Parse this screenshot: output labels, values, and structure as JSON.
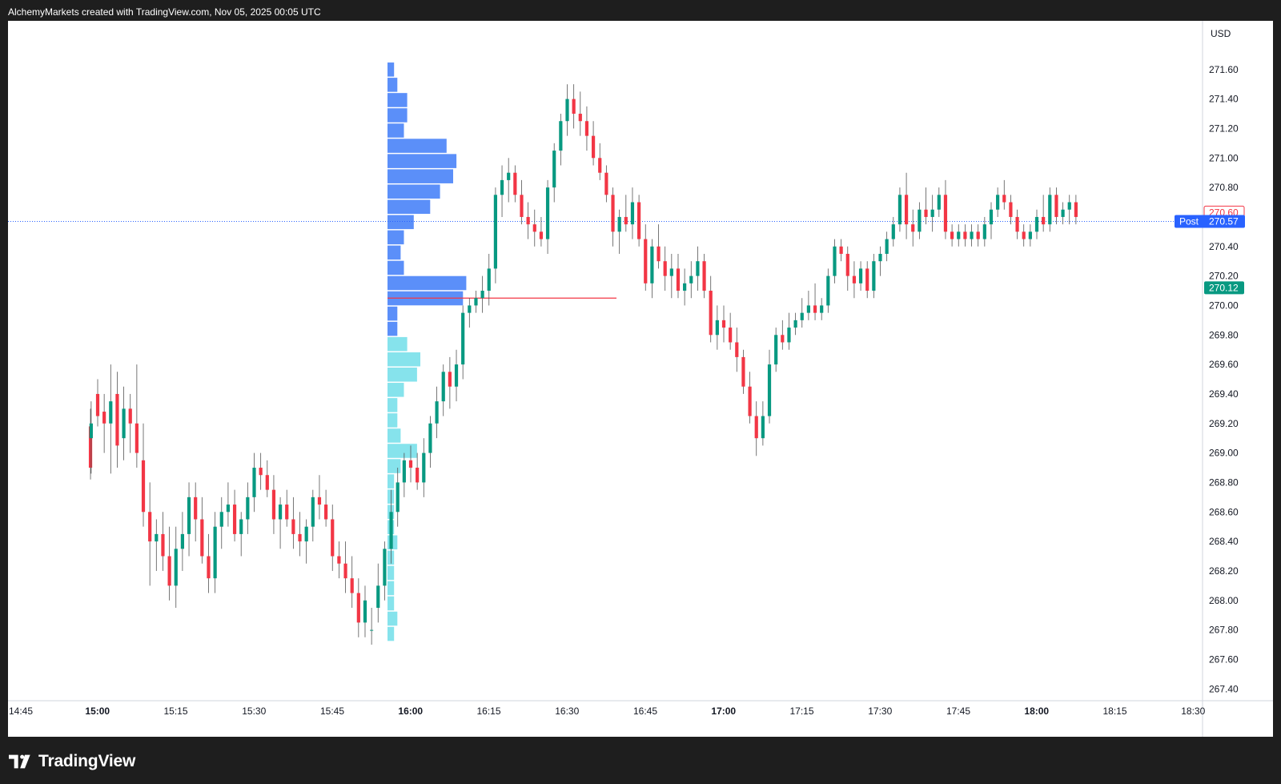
{
  "header": {
    "text": "AlchemyMarkets created with TradingView.com, Nov 05, 2025 00:05 UTC"
  },
  "footer": {
    "brand": "TradingView",
    "logo_icon": "tradingview-logo-icon"
  },
  "colors": {
    "up": "#089981",
    "down": "#f23645",
    "profile_upper": "#5b8ff9",
    "profile_lower": "#86e3ec",
    "poc": "#f23645",
    "post_badge": "#2962ff",
    "price_up_badge": "#089981",
    "high_badge_text": "#f23645"
  },
  "chart_data": {
    "type": "candlestick",
    "currency": "USD",
    "y_ticks": [
      "271.60",
      "271.40",
      "271.20",
      "271.00",
      "270.80",
      "270.60",
      "270.40",
      "270.20",
      "270.00",
      "269.80",
      "269.60",
      "269.40",
      "269.20",
      "269.00",
      "268.80",
      "268.60",
      "268.40",
      "268.20",
      "268.00",
      "267.80",
      "267.60",
      "267.40"
    ],
    "ylim": [
      267.32,
      271.93
    ],
    "x_ticks": [
      {
        "label": "14:45",
        "bold": false
      },
      {
        "label": "15:00",
        "bold": true
      },
      {
        "label": "15:15",
        "bold": false
      },
      {
        "label": "15:30",
        "bold": false
      },
      {
        "label": "15:45",
        "bold": false
      },
      {
        "label": "16:00",
        "bold": true
      },
      {
        "label": "16:15",
        "bold": false
      },
      {
        "label": "16:30",
        "bold": false
      },
      {
        "label": "16:45",
        "bold": false
      },
      {
        "label": "17:00",
        "bold": true
      },
      {
        "label": "17:15",
        "bold": false
      },
      {
        "label": "17:30",
        "bold": false
      },
      {
        "label": "17:45",
        "bold": false
      },
      {
        "label": "18:00",
        "bold": true
      },
      {
        "label": "18:15",
        "bold": false
      },
      {
        "label": "18:30",
        "bold": false
      }
    ],
    "candles": [
      [
        14.45,
        269.18,
        269.3,
        268.82,
        268.9
      ],
      [
        14.5,
        269.1,
        269.35,
        268.86,
        269.2
      ],
      [
        15.0,
        269.4,
        269.5,
        269.18,
        269.25
      ],
      [
        15.5,
        269.28,
        269.4,
        269.0,
        269.2
      ],
      [
        16.0,
        269.2,
        269.6,
        268.86,
        269.35
      ],
      [
        16.5,
        269.4,
        269.55,
        268.9,
        269.05
      ],
      [
        17.0,
        269.1,
        269.45,
        268.95,
        269.3
      ],
      [
        17.5,
        269.3,
        269.4,
        269.0,
        269.2
      ],
      [
        18.0,
        269.2,
        269.6,
        268.9,
        269.0
      ],
      [
        18.5,
        268.95,
        269.2,
        268.5,
        268.6
      ],
      [
        19.0,
        268.6,
        268.8,
        268.1,
        268.4
      ],
      [
        19.5,
        268.4,
        268.55,
        268.2,
        268.45
      ],
      [
        20.0,
        268.45,
        268.6,
        268.2,
        268.3
      ],
      [
        20.5,
        268.3,
        268.5,
        268.0,
        268.1
      ],
      [
        21.0,
        268.1,
        268.5,
        267.95,
        268.35
      ],
      [
        21.5,
        268.35,
        268.6,
        268.2,
        268.45
      ],
      [
        22.0,
        268.45,
        268.8,
        268.3,
        268.7
      ],
      [
        22.5,
        268.7,
        268.8,
        268.4,
        268.55
      ],
      [
        23.0,
        268.55,
        268.7,
        268.25,
        268.3
      ],
      [
        23.5,
        268.3,
        268.45,
        268.05,
        268.15
      ],
      [
        24.0,
        268.15,
        268.6,
        268.05,
        268.5
      ],
      [
        24.5,
        268.5,
        268.7,
        268.35,
        268.6
      ],
      [
        25.0,
        268.6,
        268.8,
        268.5,
        268.65
      ],
      [
        25.5,
        268.65,
        268.75,
        268.4,
        268.45
      ],
      [
        26.0,
        268.45,
        268.6,
        268.3,
        268.55
      ],
      [
        26.5,
        268.55,
        268.8,
        268.45,
        268.7
      ],
      [
        27.0,
        268.7,
        269.0,
        268.6,
        268.9
      ],
      [
        27.5,
        268.9,
        269.0,
        268.75,
        268.85
      ],
      [
        28.0,
        268.85,
        268.95,
        268.7,
        268.75
      ],
      [
        28.5,
        268.75,
        268.85,
        268.45,
        268.55
      ],
      [
        29.0,
        268.55,
        268.7,
        268.35,
        268.65
      ],
      [
        29.5,
        268.65,
        268.75,
        268.5,
        268.55
      ],
      [
        30.0,
        268.55,
        268.7,
        268.35,
        268.45
      ],
      [
        30.5,
        268.45,
        268.6,
        268.3,
        268.4
      ],
      [
        31.0,
        268.4,
        268.55,
        268.25,
        268.5
      ],
      [
        31.5,
        268.5,
        268.75,
        268.4,
        268.7
      ],
      [
        32.0,
        268.7,
        268.85,
        268.55,
        268.65
      ],
      [
        32.5,
        268.65,
        268.75,
        268.5,
        268.55
      ],
      [
        33.0,
        268.55,
        268.65,
        268.2,
        268.3
      ],
      [
        33.5,
        268.3,
        268.4,
        268.15,
        268.25
      ],
      [
        34.0,
        268.25,
        268.4,
        268.05,
        268.15
      ],
      [
        34.5,
        268.15,
        268.3,
        267.95,
        268.05
      ],
      [
        35.0,
        268.05,
        268.15,
        267.75,
        267.85
      ],
      [
        35.5,
        267.85,
        268.1,
        267.75,
        268.0
      ]
    ],
    "candles_b": [
      [
        36.0,
        267.8,
        267.95,
        267.7,
        267.8
      ],
      [
        36.5,
        267.95,
        268.25,
        267.85,
        268.1
      ],
      [
        37.0,
        268.1,
        268.4,
        268.0,
        268.35
      ],
      [
        37.5,
        268.35,
        268.75,
        268.25,
        268.6
      ],
      [
        38.0,
        268.6,
        268.9,
        268.5,
        268.8
      ],
      [
        38.5,
        268.8,
        269.0,
        268.7,
        268.95
      ],
      [
        39.0,
        268.95,
        269.05,
        268.8,
        268.9
      ],
      [
        39.5,
        268.9,
        269.0,
        268.75,
        268.8
      ],
      [
        40.0,
        268.8,
        269.1,
        268.7,
        269.0
      ],
      [
        40.5,
        269.0,
        269.25,
        268.9,
        269.2
      ],
      [
        41.0,
        269.2,
        269.45,
        269.1,
        269.35
      ],
      [
        41.5,
        269.35,
        269.6,
        269.25,
        269.55
      ],
      [
        42.0,
        269.55,
        269.65,
        269.3,
        269.45
      ],
      [
        42.5,
        269.45,
        269.7,
        269.35,
        269.6
      ],
      [
        43.0,
        269.6,
        270.0,
        269.5,
        269.95
      ],
      [
        43.5,
        269.95,
        270.05,
        269.85,
        270.0
      ],
      [
        44.0,
        270.0,
        270.1,
        269.95,
        270.05
      ],
      [
        44.5,
        270.05,
        270.2,
        269.95,
        270.1
      ],
      [
        45.0,
        270.1,
        270.35,
        270.0,
        270.25
      ],
      [
        45.5,
        270.25,
        270.8,
        270.15,
        270.75
      ],
      [
        46.0,
        270.75,
        270.95,
        270.6,
        270.85
      ],
      [
        46.5,
        270.85,
        271.0,
        270.7,
        270.9
      ],
      [
        47.0,
        270.9,
        270.95,
        270.7,
        270.75
      ],
      [
        47.5,
        270.75,
        270.85,
        270.55,
        270.6
      ],
      [
        48.0,
        270.6,
        270.7,
        270.45,
        270.55
      ],
      [
        48.5,
        270.55,
        270.65,
        270.4,
        270.5
      ],
      [
        49.0,
        270.5,
        270.6,
        270.4,
        270.45
      ],
      [
        49.5,
        270.45,
        270.85,
        270.35,
        270.8
      ],
      [
        50.0,
        270.8,
        271.1,
        270.7,
        271.05
      ],
      [
        50.5,
        271.05,
        271.3,
        270.95,
        271.25
      ],
      [
        51.0,
        271.25,
        271.5,
        271.15,
        271.4
      ],
      [
        51.5,
        271.4,
        271.5,
        271.2,
        271.3
      ],
      [
        52.0,
        271.3,
        271.45,
        271.15,
        271.25
      ],
      [
        52.5,
        271.25,
        271.35,
        271.05,
        271.15
      ],
      [
        53.0,
        271.15,
        271.25,
        270.95,
        271.0
      ],
      [
        53.5,
        271.0,
        271.1,
        270.85,
        270.9
      ],
      [
        54.0,
        270.9,
        270.95,
        270.7,
        270.75
      ],
      [
        54.5,
        270.75,
        270.8,
        270.4,
        270.5
      ],
      [
        55.0,
        270.5,
        270.65,
        270.35,
        270.6
      ],
      [
        55.5,
        270.6,
        270.75,
        270.5,
        270.55
      ],
      [
        56.0,
        270.55,
        270.8,
        270.45,
        270.7
      ],
      [
        56.5,
        270.7,
        270.75,
        270.4,
        270.45
      ],
      [
        57.0,
        270.45,
        270.55,
        270.1,
        270.15
      ],
      [
        57.5,
        270.15,
        270.45,
        270.05,
        270.4
      ]
    ],
    "candles_c": [
      [
        58.0,
        270.4,
        270.55,
        270.25,
        270.3
      ],
      [
        58.5,
        270.3,
        270.4,
        270.1,
        270.2
      ],
      [
        59.0,
        270.2,
        270.35,
        270.05,
        270.25
      ],
      [
        59.5,
        270.25,
        270.35,
        270.05,
        270.1
      ],
      [
        60.0,
        270.1,
        270.25,
        270.0,
        270.15
      ],
      [
        60.5,
        270.15,
        270.3,
        270.05,
        270.2
      ],
      [
        61.0,
        270.2,
        270.4,
        270.1,
        270.3
      ],
      [
        61.5,
        270.3,
        270.35,
        270.05,
        270.1
      ],
      [
        62.0,
        270.1,
        270.2,
        269.75,
        269.8
      ],
      [
        62.5,
        269.8,
        270.0,
        269.7,
        269.9
      ],
      [
        63.0,
        269.9,
        270.0,
        269.75,
        269.85
      ],
      [
        63.5,
        269.85,
        269.95,
        269.7,
        269.75
      ],
      [
        64.0,
        269.75,
        269.85,
        269.55,
        269.65
      ],
      [
        64.5,
        269.65,
        269.7,
        269.4,
        269.45
      ],
      [
        65.0,
        269.45,
        269.55,
        269.2,
        269.25
      ],
      [
        65.5,
        269.25,
        269.35,
        268.98,
        269.1
      ],
      [
        66.0,
        269.1,
        269.35,
        269.05,
        269.25
      ],
      [
        66.5,
        269.25,
        269.7,
        269.2,
        269.6
      ],
      [
        67.0,
        269.6,
        269.85,
        269.55,
        269.8
      ],
      [
        67.5,
        269.8,
        269.9,
        269.7,
        269.75
      ],
      [
        68.0,
        269.75,
        269.95,
        269.7,
        269.85
      ],
      [
        68.5,
        269.85,
        269.95,
        269.8,
        269.9
      ],
      [
        69.0,
        269.9,
        270.05,
        269.85,
        269.95
      ],
      [
        69.5,
        269.95,
        270.1,
        269.9,
        270.0
      ],
      [
        70.0,
        270.0,
        270.15,
        269.9,
        269.95
      ],
      [
        70.5,
        269.95,
        270.05,
        269.9,
        270.0
      ],
      [
        71.0,
        270.0,
        270.25,
        269.95,
        270.2
      ],
      [
        71.5,
        270.2,
        270.45,
        270.15,
        270.4
      ],
      [
        72.0,
        270.4,
        270.45,
        270.3,
        270.35
      ],
      [
        72.5,
        270.35,
        270.4,
        270.1,
        270.2
      ],
      [
        73.0,
        270.2,
        270.3,
        270.05,
        270.15
      ],
      [
        73.5,
        270.15,
        270.3,
        270.1,
        270.25
      ],
      [
        74.0,
        270.25,
        270.3,
        270.05,
        270.1
      ],
      [
        74.5,
        270.1,
        270.35,
        270.05,
        270.3
      ],
      [
        75.0,
        270.3,
        270.4,
        270.2,
        270.35
      ],
      [
        75.5,
        270.35,
        270.5,
        270.3,
        270.45
      ],
      [
        76.0,
        270.45,
        270.6,
        270.4,
        270.55
      ],
      [
        76.5,
        270.55,
        270.8,
        270.5,
        270.75
      ],
      [
        77.0,
        270.75,
        270.9,
        270.45,
        270.55
      ],
      [
        77.5,
        270.55,
        270.65,
        270.4,
        270.5
      ],
      [
        78.0,
        270.5,
        270.7,
        270.45,
        270.65
      ],
      [
        78.5,
        270.65,
        270.8,
        270.55,
        270.6
      ],
      [
        79.0,
        270.6,
        270.75,
        270.5,
        270.65
      ],
      [
        79.5,
        270.65,
        270.8,
        270.6,
        270.75
      ]
    ],
    "candles_d": [
      [
        80.0,
        270.75,
        270.85,
        270.45,
        270.5
      ],
      [
        80.5,
        270.5,
        270.55,
        270.4,
        270.45
      ],
      [
        81.0,
        270.45,
        270.55,
        270.4,
        270.5
      ],
      [
        81.5,
        270.5,
        270.55,
        270.4,
        270.45
      ],
      [
        82.0,
        270.45,
        270.55,
        270.4,
        270.5
      ],
      [
        82.5,
        270.5,
        270.55,
        270.4,
        270.45
      ],
      [
        83.0,
        270.45,
        270.6,
        270.4,
        270.55
      ],
      [
        83.5,
        270.55,
        270.7,
        270.45,
        270.65
      ],
      [
        84.0,
        270.65,
        270.8,
        270.6,
        270.75
      ],
      [
        84.5,
        270.75,
        270.85,
        270.65,
        270.7
      ],
      [
        85.0,
        270.7,
        270.75,
        270.55,
        270.6
      ],
      [
        85.5,
        270.6,
        270.65,
        270.45,
        270.5
      ],
      [
        86.0,
        270.5,
        270.55,
        270.4,
        270.45
      ],
      [
        86.5,
        270.45,
        270.55,
        270.4,
        270.5
      ],
      [
        87.0,
        270.5,
        270.65,
        270.45,
        270.6
      ],
      [
        87.5,
        270.6,
        270.75,
        270.5,
        270.55
      ],
      [
        88.0,
        270.55,
        270.8,
        270.5,
        270.75
      ],
      [
        88.5,
        270.75,
        270.8,
        270.55,
        270.6
      ],
      [
        89.0,
        270.6,
        270.7,
        270.55,
        270.65
      ],
      [
        89.5,
        270.65,
        270.75,
        270.55,
        270.7
      ],
      [
        90.0,
        270.7,
        270.75,
        270.55,
        270.6
      ]
    ],
    "volume_profile": {
      "upper_rows": [
        2,
        3,
        6,
        6,
        5,
        18,
        21,
        20,
        16,
        13,
        8,
        5,
        4,
        5,
        24,
        23,
        3,
        3
      ],
      "lower_rows": [
        6,
        10,
        9,
        5,
        3,
        3,
        4,
        9,
        4,
        2,
        2,
        2,
        2,
        3,
        2,
        2,
        2,
        2,
        3,
        2
      ],
      "price_top": 271.65,
      "price_bottom": 267.72,
      "poc_price": 270.05
    },
    "price_labels": [
      {
        "label": "270.60",
        "price": 270.63,
        "style": "high"
      },
      {
        "label": "270.57",
        "price": 270.57,
        "style": "post",
        "tag": "Post"
      },
      {
        "label": "270.12",
        "price": 270.12,
        "style": "up"
      }
    ],
    "last_price_line": 270.57
  }
}
